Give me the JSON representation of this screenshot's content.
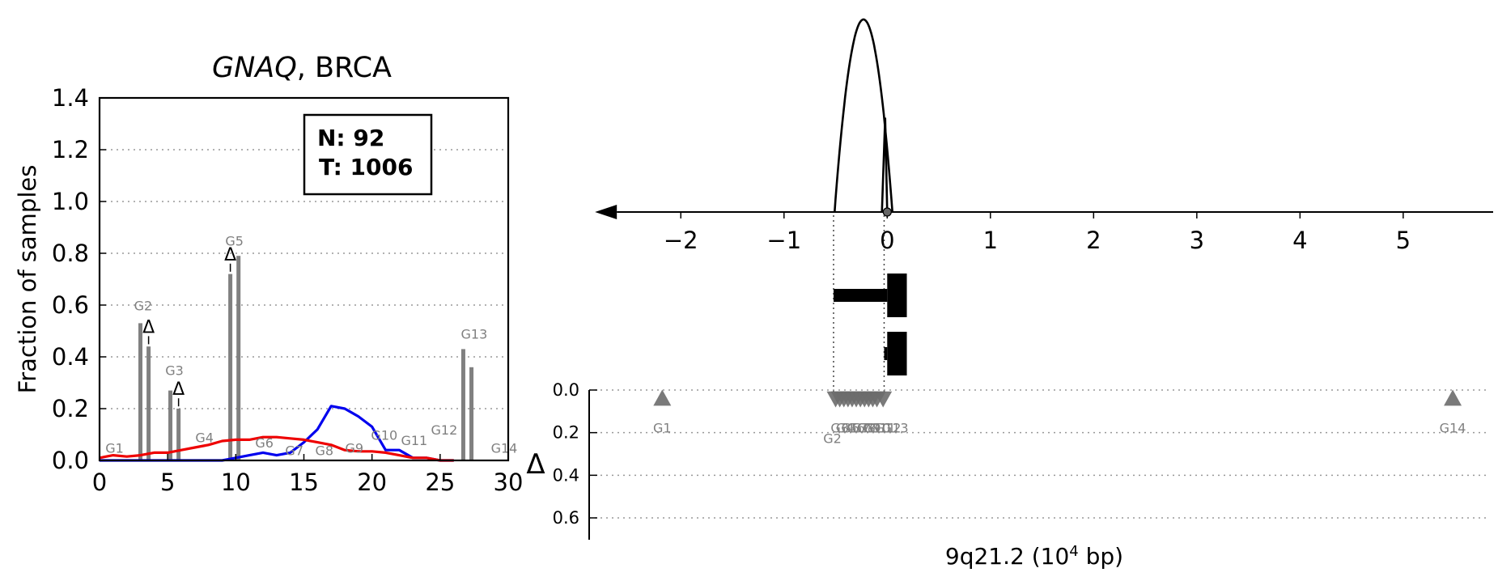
{
  "chart_data": [
    {
      "type": "bar",
      "title_gene": "GNAQ",
      "title_rest": ", BRCA",
      "ylabel": "Fraction of samples",
      "xlim": [
        0,
        30
      ],
      "ylim": [
        0,
        1.4
      ],
      "x_ticks": [
        "0",
        "5",
        "10",
        "15",
        "20",
        "25",
        "30"
      ],
      "y_ticks": [
        "0.0",
        "0.2",
        "0.4",
        "0.6",
        "0.8",
        "1.0",
        "1.2",
        "1.4"
      ],
      "legend_box": {
        "n_line": "N: 92",
        "t_line": "T: 1006"
      },
      "bar_color": "#808080",
      "bars": [
        {
          "x": 3.0,
          "value": 0.53
        },
        {
          "x": 3.6,
          "value": 0.44
        },
        {
          "x": 5.2,
          "value": 0.27
        },
        {
          "x": 5.8,
          "value": 0.2
        },
        {
          "x": 9.6,
          "value": 0.72
        },
        {
          "x": 10.2,
          "value": 0.79
        },
        {
          "x": 26.7,
          "value": 0.43
        },
        {
          "x": 27.3,
          "value": 0.36
        }
      ],
      "gene_labels": [
        {
          "label": "G1",
          "x": 1.1,
          "y": 0.03
        },
        {
          "label": "G2",
          "x": 3.2,
          "y": 0.58
        },
        {
          "label": "G3",
          "x": 5.5,
          "y": 0.33
        },
        {
          "label": "G4",
          "x": 7.7,
          "y": 0.07
        },
        {
          "label": "G5",
          "x": 9.9,
          "y": 0.83
        },
        {
          "label": "G6",
          "x": 12.1,
          "y": 0.05
        },
        {
          "label": "G7",
          "x": 14.3,
          "y": 0.02
        },
        {
          "label": "G8",
          "x": 16.5,
          "y": 0.02
        },
        {
          "label": "G9",
          "x": 18.7,
          "y": 0.03
        },
        {
          "label": "G10",
          "x": 20.9,
          "y": 0.08
        },
        {
          "label": "G11",
          "x": 23.1,
          "y": 0.06
        },
        {
          "label": "G12",
          "x": 25.3,
          "y": 0.1
        },
        {
          "label": "G13",
          "x": 27.5,
          "y": 0.47
        },
        {
          "label": "G14",
          "x": 29.7,
          "y": 0.03
        }
      ],
      "delta_markers": [
        {
          "label": "Δ",
          "x": 3.6,
          "y": 0.48
        },
        {
          "label": "Δ",
          "x": 5.8,
          "y": 0.24
        },
        {
          "label": "Δ",
          "x": 9.6,
          "y": 0.76
        }
      ],
      "series": [
        {
          "color": "#0000ee",
          "x": [
            0,
            5,
            9,
            10,
            11,
            12,
            13,
            14,
            15,
            16,
            17,
            18,
            19,
            20,
            21,
            22,
            23,
            24,
            25,
            26
          ],
          "y": [
            0,
            0,
            0,
            0.01,
            0.02,
            0.03,
            0.02,
            0.03,
            0.07,
            0.12,
            0.21,
            0.2,
            0.17,
            0.13,
            0.04,
            0.04,
            0.01,
            0.01,
            0.0,
            0.0
          ]
        },
        {
          "color": "#ee0000",
          "x": [
            0,
            1,
            2,
            3,
            4,
            5,
            6,
            7,
            8,
            9,
            10,
            11,
            12,
            13,
            14,
            15,
            16,
            17,
            18,
            19,
            20,
            21,
            22,
            23,
            24,
            25,
            26
          ],
          "y": [
            0.01,
            0.02,
            0.015,
            0.02,
            0.03,
            0.03,
            0.04,
            0.05,
            0.06,
            0.075,
            0.08,
            0.08,
            0.09,
            0.09,
            0.085,
            0.08,
            0.07,
            0.06,
            0.04,
            0.035,
            0.035,
            0.03,
            0.02,
            0.01,
            0.01,
            0.0,
            0.0
          ]
        }
      ]
    },
    {
      "type": "scatter",
      "xlabel": "9q21.2 (10",
      "xlabel_sup": "4",
      "xlabel_tail": " bp)",
      "x_axis_ticks": [
        "−2",
        "−1",
        "0",
        "1",
        "2",
        "3",
        "4",
        "5"
      ],
      "x_axis_values": [
        -2,
        -1,
        0,
        1,
        2,
        3,
        4,
        5
      ],
      "xlim": [
        -2.7,
        5.95
      ],
      "distribution": {
        "color": "#000000",
        "peak_center": -0.23,
        "peak_halfwidth": 0.28,
        "peak_height": 1.0,
        "spike_x": -0.02,
        "spike_height": 0.5
      },
      "boxplots": [
        {
          "whisker_left": -0.52,
          "box_left": 0.0,
          "box_right": 0.19
        },
        {
          "whisker_left": -0.03,
          "box_left": 0.0,
          "box_right": 0.19
        }
      ],
      "delta_axis_label": "Δ",
      "delta_ticks": [
        "0.0",
        "0.2",
        "0.4",
        "0.6"
      ],
      "delta_values": [
        0.0,
        0.2,
        0.4,
        0.6
      ],
      "marker_color": "#6b6b6b",
      "markers": [
        {
          "label": "G1",
          "x": -2.18,
          "delta": 0.04,
          "shape": "up"
        },
        {
          "label": "G2",
          "x": -0.5,
          "delta": 0.04,
          "shape": "down"
        },
        {
          "label": "G3",
          "x": -0.46,
          "delta": 0.04,
          "shape": "down"
        },
        {
          "label": "G4",
          "x": -0.42,
          "delta": 0.04,
          "shape": "down"
        },
        {
          "label": "G5",
          "x": -0.38,
          "delta": 0.04,
          "shape": "down"
        },
        {
          "label": "G6",
          "x": -0.34,
          "delta": 0.04,
          "shape": "down"
        },
        {
          "label": "G7",
          "x": -0.3,
          "delta": 0.04,
          "shape": "down"
        },
        {
          "label": "G8",
          "x": -0.26,
          "delta": 0.04,
          "shape": "down"
        },
        {
          "label": "G9",
          "x": -0.22,
          "delta": 0.04,
          "shape": "down"
        },
        {
          "label": "G10",
          "x": -0.18,
          "delta": 0.04,
          "shape": "down"
        },
        {
          "label": "G11",
          "x": -0.14,
          "delta": 0.04,
          "shape": "down"
        },
        {
          "label": "G12",
          "x": -0.1,
          "delta": 0.04,
          "shape": "down"
        },
        {
          "label": "G13",
          "x": -0.04,
          "delta": 0.04,
          "shape": "down"
        },
        {
          "label": "G14",
          "x": 5.48,
          "delta": 0.04,
          "shape": "up"
        }
      ]
    }
  ]
}
